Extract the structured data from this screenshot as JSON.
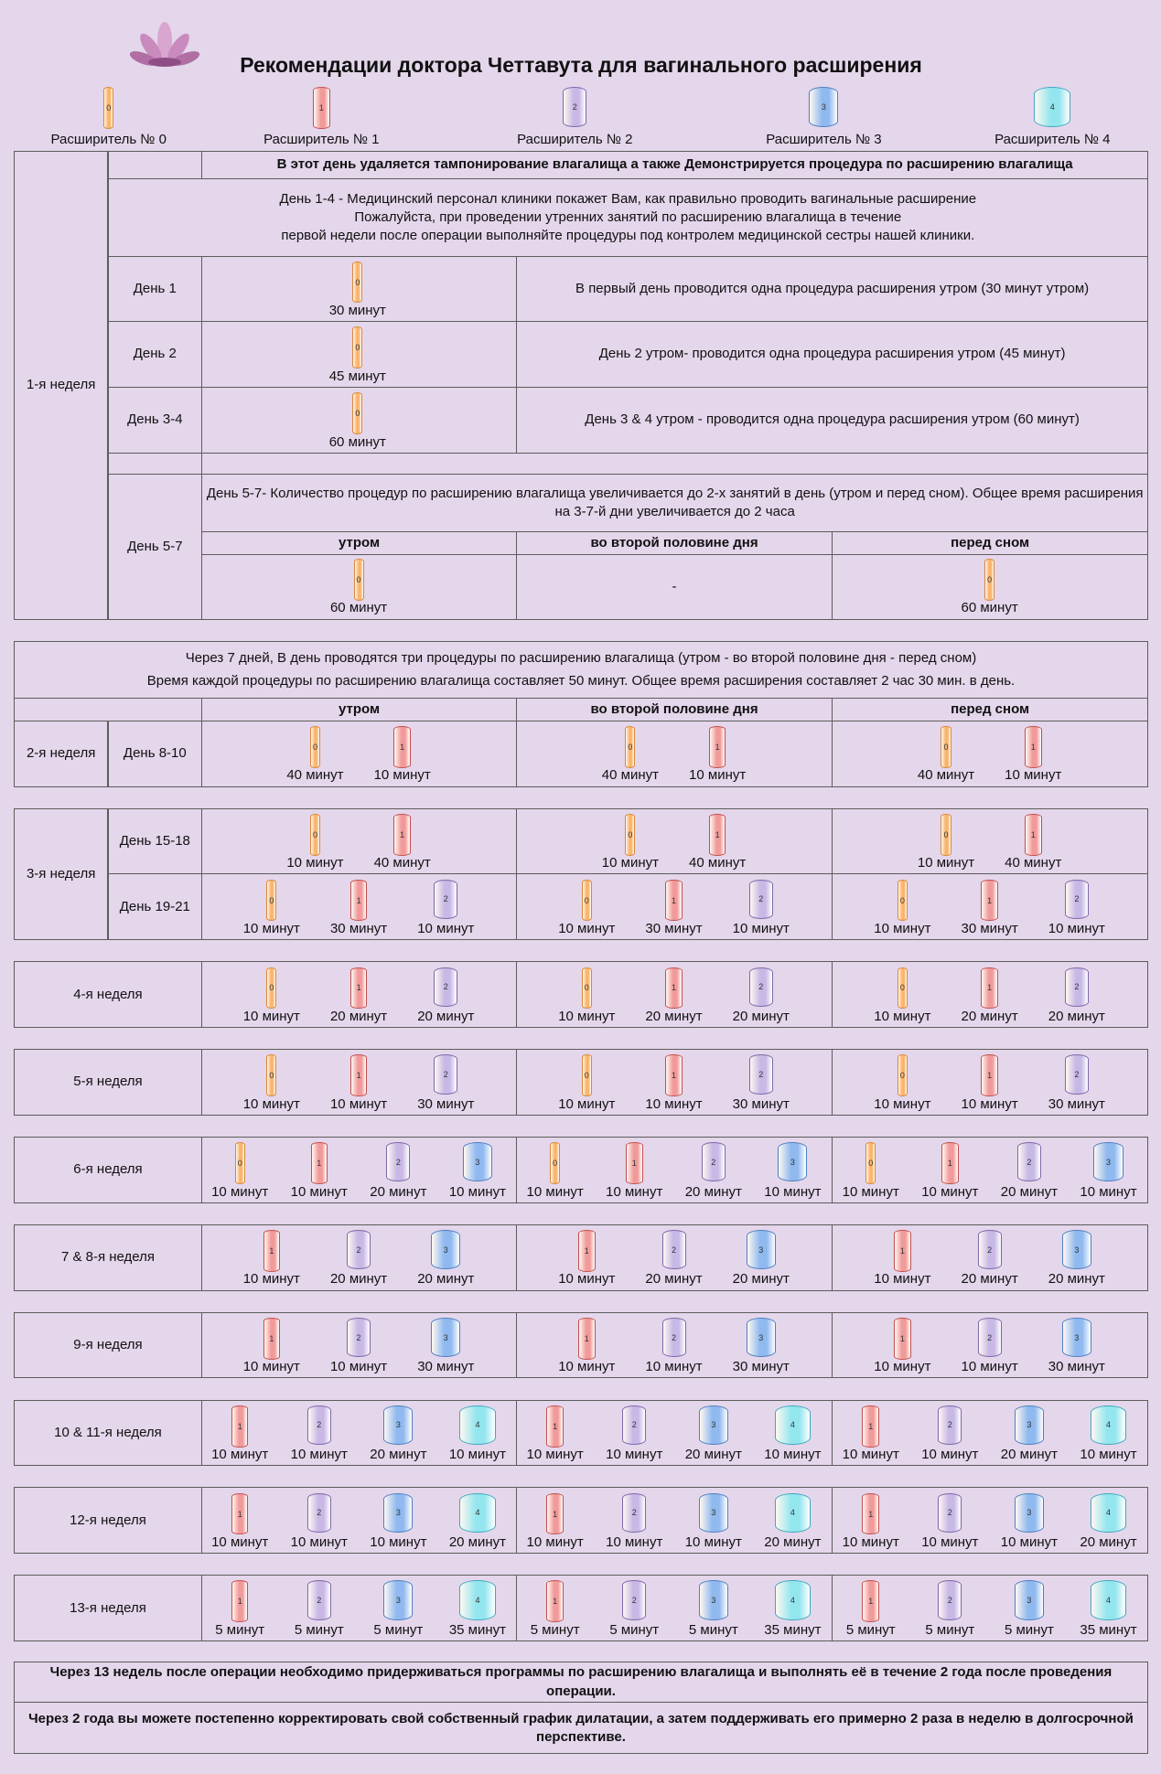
{
  "title": "Рекомендации доктора Четтавута для вагинального расширения",
  "dilators": [
    {
      "num": "0",
      "label": "Расширитель № 0",
      "color": "#f9b46c",
      "border": "#d88a3a"
    },
    {
      "num": "1",
      "label": "Расширитель № 1",
      "color": "#f19a9a",
      "border": "#c0504d"
    },
    {
      "num": "2",
      "label": "Расширитель № 2",
      "color": "#c7b8e6",
      "border": "#7f68a8"
    },
    {
      "num": "3",
      "label": "Расширитель № 3",
      "color": "#8fb9ef",
      "border": "#4f7fbf"
    },
    {
      "num": "4",
      "label": "Расширитель № 4",
      "color": "#94e6ee",
      "border": "#3fa8bf"
    }
  ],
  "week1": {
    "week": "1-я неделя",
    "intro": "В этот день удаляется тампонирование влагалища а также Демонстрируется процедура по расширению влагалища",
    "days_1_4": [
      "День 1-4 - Медицинский персонал клиники покажет Вам, как правильно проводить вагинальные расширение",
      "Пожалуйста, при проведении утренних занятий по расширению влагалища в течение",
      "первой недели после операции выполняйте процедуры под контролем медицинской сестры нашей клиники."
    ],
    "days": [
      {
        "day": "День 1",
        "dilator": "0",
        "time": "30 минут",
        "note": "В первый день проводится одна процедура расширения утром  (30 минут утром)"
      },
      {
        "day": "День 2",
        "dilator": "0",
        "time": "45 минут",
        "note": "День 2  утром- проводится одна процедура расширения утром  (45 минут)"
      },
      {
        "day": "День 3-4",
        "dilator": "0",
        "time": "60 минут",
        "note": "День 3 & 4  утром - проводится одна процедура расширения утром  (60 минут)"
      }
    ],
    "days_5_7": {
      "day": "День 5-7",
      "text": "День 5-7- Количество процедур по расширению влагалища увеличивается до 2-х занятий в день (утром и перед сном).  Общее время расширения на 3-7-й дни увеличивается до 2 часа",
      "columns": [
        "утром",
        "во второй половине дня",
        "перед сном"
      ],
      "cells": [
        {
          "dilator": "0",
          "time": "60 минут"
        },
        {
          "text": "-"
        },
        {
          "dilator": "0",
          "time": "60 минут"
        }
      ]
    }
  },
  "after_7_days": {
    "lines": [
      "Через 7 дней, В день проводятся три процедуры по расширению влагалища (утром - во второй половине дня - перед сном)",
      "Время каждой процедуры по расширению влагалища составляет 50 минут. Общее время расширения составляет 2 час 30 мин. в день."
    ],
    "columns": [
      "утром",
      "во второй половине дня",
      "перед сном"
    ]
  },
  "schedule": [
    {
      "week": "2-я неделя",
      "rows": [
        {
          "day": "День 8-10",
          "items": [
            {
              "dilator": "0",
              "time": "40 минут"
            },
            {
              "dilator": "1",
              "time": "10 минут"
            }
          ]
        }
      ]
    },
    {
      "week": "3-я неделя",
      "rows": [
        {
          "day": "День 15-18",
          "items": [
            {
              "dilator": "0",
              "time": "10 минут"
            },
            {
              "dilator": "1",
              "time": "40 минут"
            }
          ]
        },
        {
          "day": "День 19-21",
          "items": [
            {
              "dilator": "0",
              "time": "10 минут"
            },
            {
              "dilator": "1",
              "time": "30 минут"
            },
            {
              "dilator": "2",
              "time": "10 минут"
            }
          ]
        }
      ]
    },
    {
      "week": "4-я неделя",
      "rows": [
        {
          "items": [
            {
              "dilator": "0",
              "time": "10 минут"
            },
            {
              "dilator": "1",
              "time": "20 минут"
            },
            {
              "dilator": "2",
              "time": "20 минут"
            }
          ]
        }
      ]
    },
    {
      "week": "5-я неделя",
      "rows": [
        {
          "items": [
            {
              "dilator": "0",
              "time": "10 минут"
            },
            {
              "dilator": "1",
              "time": "10 минут"
            },
            {
              "dilator": "2",
              "time": "30 минут"
            }
          ]
        }
      ]
    },
    {
      "week": "6-я неделя",
      "rows": [
        {
          "items": [
            {
              "dilator": "0",
              "time": "10 минут"
            },
            {
              "dilator": "1",
              "time": "10 минут"
            },
            {
              "dilator": "2",
              "time": "20 минут"
            },
            {
              "dilator": "3",
              "time": "10 минут"
            }
          ]
        }
      ]
    },
    {
      "week": "7 & 8-я неделя",
      "rows": [
        {
          "items": [
            {
              "dilator": "1",
              "time": "10 минут"
            },
            {
              "dilator": "2",
              "time": "20 минут"
            },
            {
              "dilator": "3",
              "time": "20 минут"
            }
          ]
        }
      ]
    },
    {
      "week": "9-я неделя",
      "rows": [
        {
          "items": [
            {
              "dilator": "1",
              "time": "10 минут"
            },
            {
              "dilator": "2",
              "time": "10 минут"
            },
            {
              "dilator": "3",
              "time": "30 минут"
            }
          ]
        }
      ]
    },
    {
      "week": "10 & 11-я неделя",
      "rows": [
        {
          "items": [
            {
              "dilator": "1",
              "time": "10 минут"
            },
            {
              "dilator": "2",
              "time": "10 минут"
            },
            {
              "dilator": "3",
              "time": "20 минут"
            },
            {
              "dilator": "4",
              "time": "10 минут"
            }
          ]
        }
      ]
    },
    {
      "week": "12-я неделя",
      "rows": [
        {
          "items": [
            {
              "dilator": "1",
              "time": "10 минут"
            },
            {
              "dilator": "2",
              "time": "10 минут"
            },
            {
              "dilator": "3",
              "time": "10 минут"
            },
            {
              "dilator": "4",
              "time": "20 минут"
            }
          ]
        }
      ]
    },
    {
      "week": "13-я неделя",
      "rows": [
        {
          "items": [
            {
              "dilator": "1",
              "time": "5 минут"
            },
            {
              "dilator": "2",
              "time": "5 минут"
            },
            {
              "dilator": "3",
              "time": "5 минут"
            },
            {
              "dilator": "4",
              "time": "35 минут"
            }
          ]
        }
      ]
    }
  ],
  "footer": [
    "Через 13 недель после операции необходимо придерживаться программы по расширению влагалища и выполнять её в течение 2 года после проведения операции.",
    "Через 2 года вы можете постепенно корректировать свой собственный график дилатации, а затем поддерживать его примерно 2 раза в неделю в долгосрочной перспективе."
  ]
}
